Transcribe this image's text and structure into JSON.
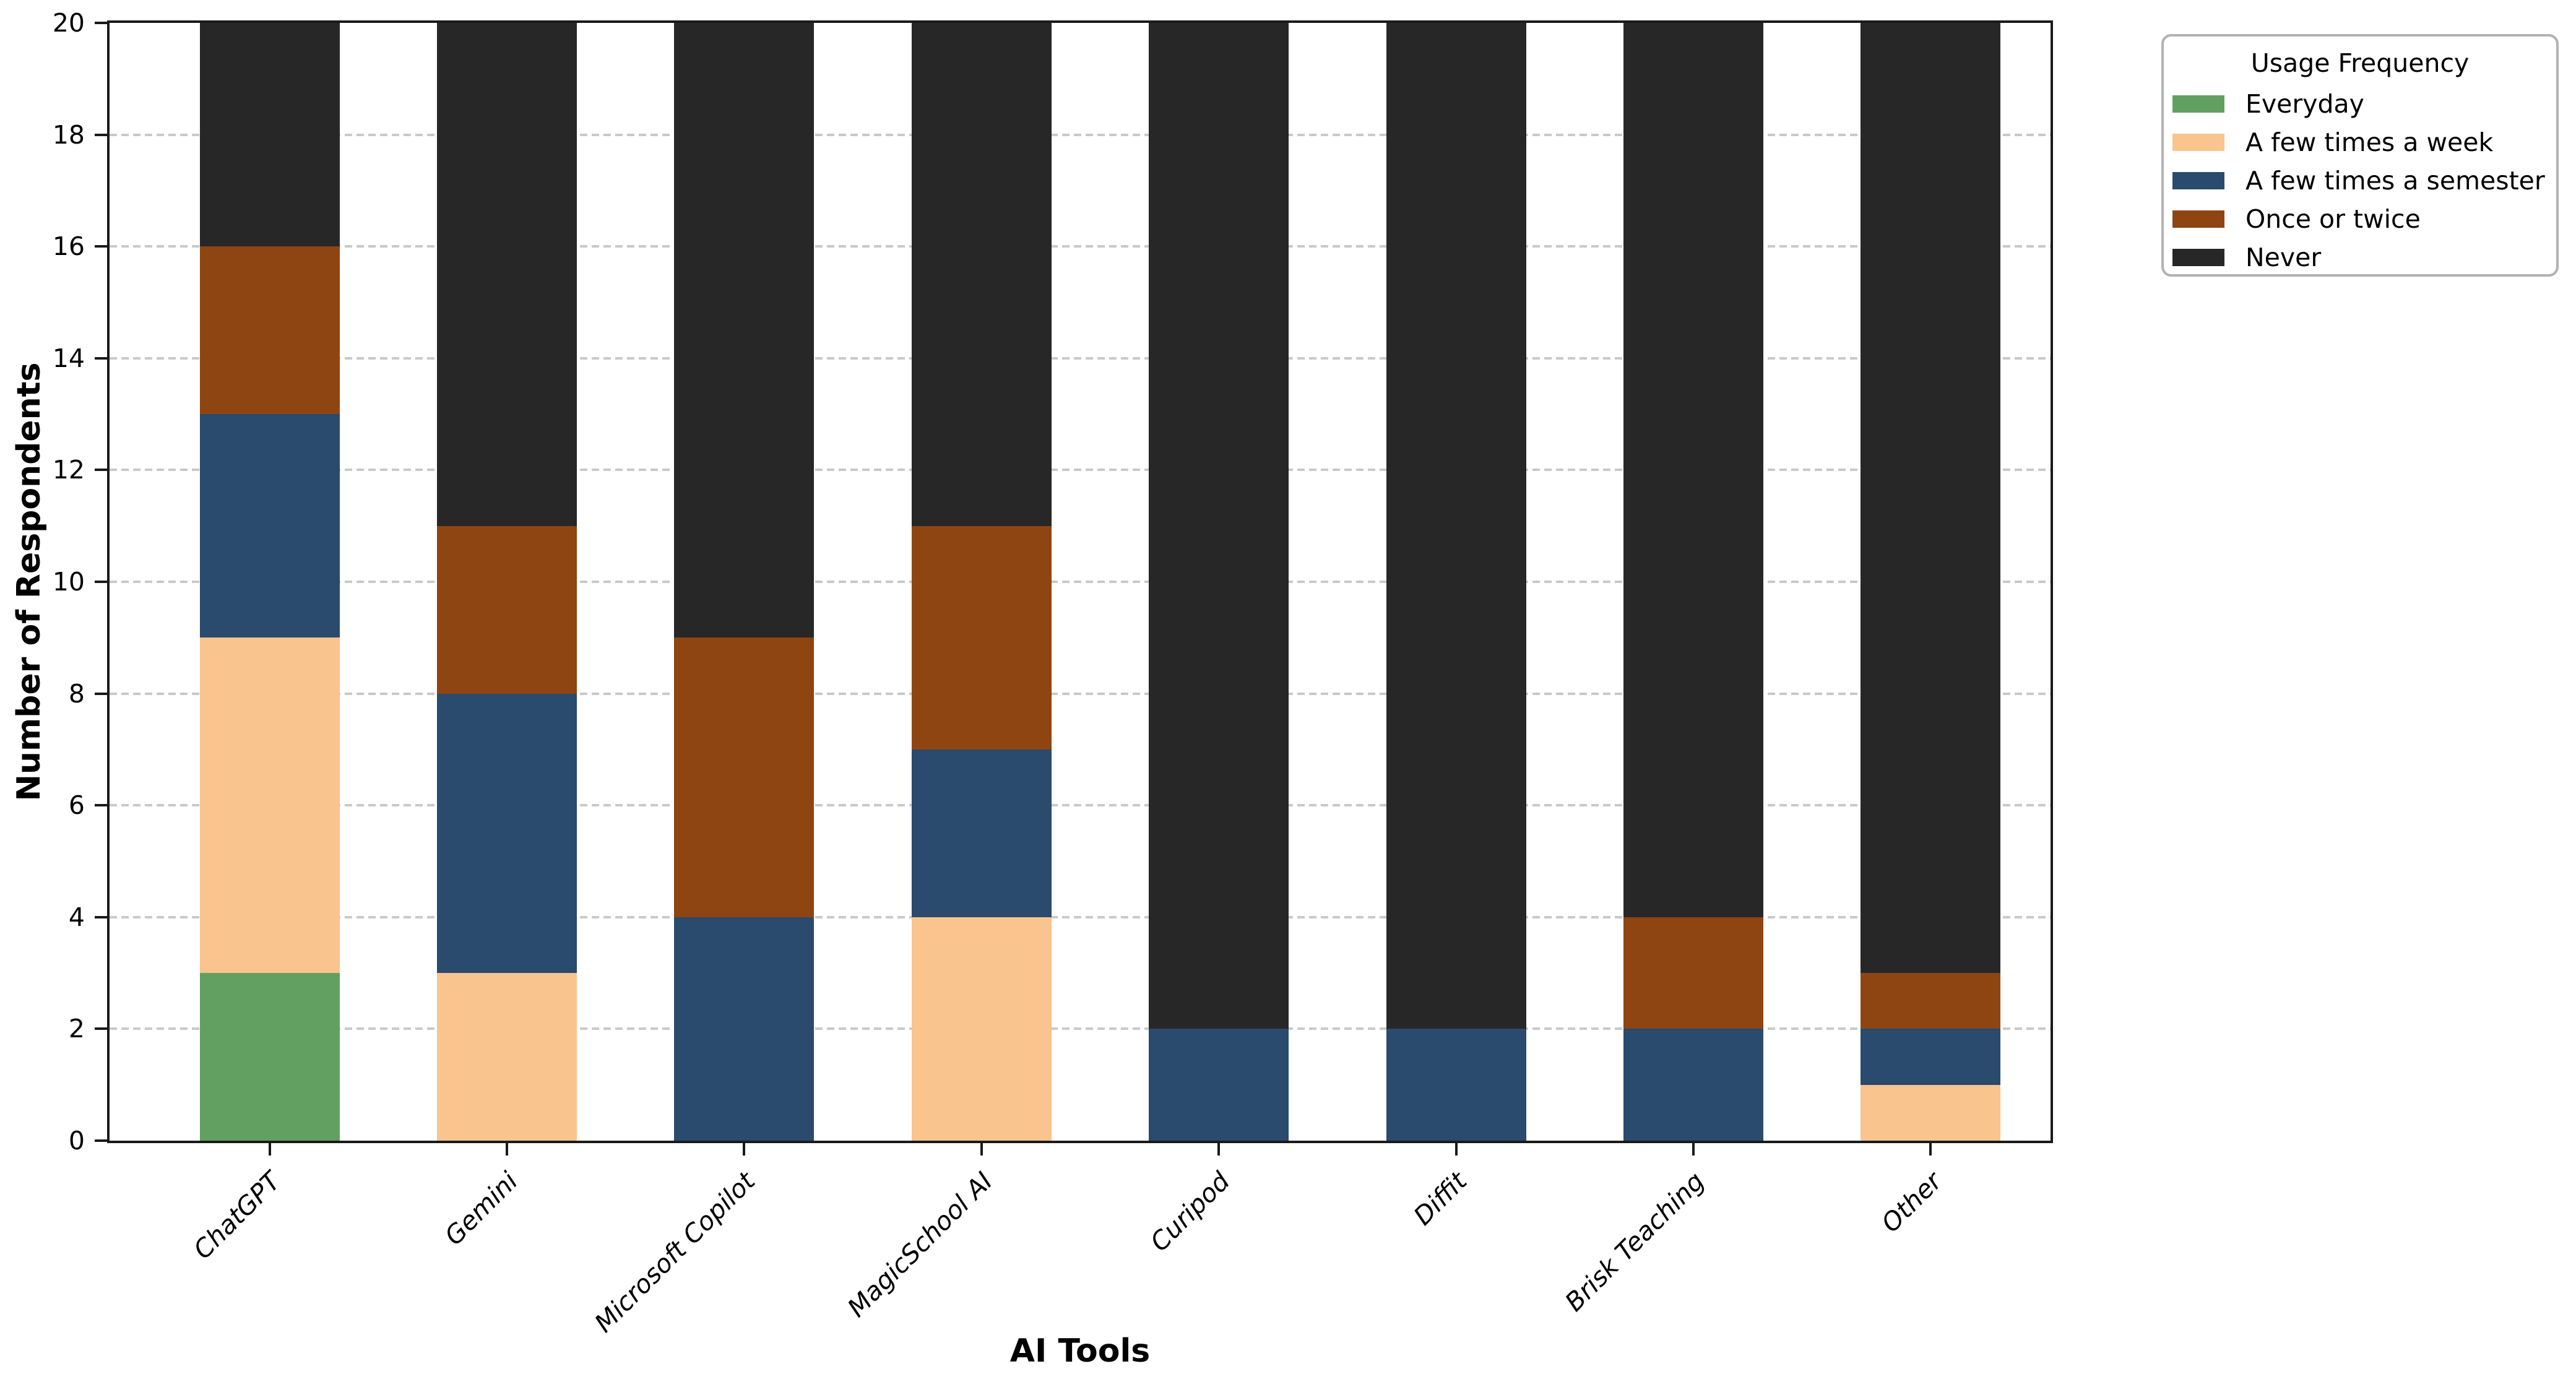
{
  "chart_data": {
    "type": "bar",
    "stacked": true,
    "title": "",
    "xlabel": "AI Tools",
    "ylabel": "Number of Respondents",
    "legend_title": "Usage Frequency",
    "legend_position": "upper right outside plot",
    "grid": "horizontal dashed gray",
    "ylim": [
      0,
      20
    ],
    "ytick_step": 2,
    "ytick_labels": [
      "0",
      "2",
      "4",
      "6",
      "8",
      "10",
      "12",
      "14",
      "16",
      "18",
      "20"
    ],
    "categories": [
      "ChatGPT",
      "Gemini",
      "Microsoft Copilot",
      "MagicSchool AI",
      "Curipod",
      "Diffit",
      "Brisk Teaching",
      "Other"
    ],
    "series": [
      {
        "name": "Everyday",
        "color": "#62a062",
        "values": [
          3,
          0,
          0,
          0,
          0,
          0,
          0,
          0
        ]
      },
      {
        "name": "A few times a week",
        "color": "#f9c48e",
        "values": [
          6,
          3,
          0,
          4,
          0,
          0,
          0,
          1
        ]
      },
      {
        "name": "A few times a semester",
        "color": "#2a4a6e",
        "values": [
          4,
          5,
          4,
          3,
          2,
          2,
          2,
          1
        ]
      },
      {
        "name": "Once or twice",
        "color": "#8e4512",
        "values": [
          3,
          3,
          5,
          4,
          0,
          0,
          2,
          1
        ]
      },
      {
        "name": "Never",
        "color": "#272727",
        "values": [
          4,
          9,
          11,
          9,
          18,
          18,
          16,
          17
        ]
      }
    ],
    "bar_totals": [
      20,
      20,
      20,
      20,
      20,
      20,
      20,
      20
    ]
  }
}
